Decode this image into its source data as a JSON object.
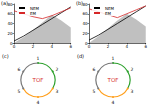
{
  "chart_data": [
    {
      "type": "line",
      "title": "(a)",
      "legend": "upper left",
      "grid": false,
      "x": [
        0,
        1,
        2,
        3,
        4,
        5,
        6
      ],
      "xlim": [
        0,
        6
      ],
      "xticks": [
        0,
        2,
        4,
        6
      ],
      "ylim": [
        0,
        80
      ],
      "yticks": [
        0,
        20,
        40,
        60,
        80
      ],
      "series": [
        {
          "type": "area",
          "color": "#b0b0b0",
          "values": [
            0,
            12,
            26,
            42,
            58,
            46,
            32
          ]
        },
        {
          "name": "NEM",
          "color": "#000000",
          "values": [
            4,
            14,
            26,
            38,
            50,
            62,
            74
          ]
        },
        {
          "name": "EM",
          "color": "#d62728",
          "values": [
            66,
            60,
            54,
            50,
            56,
            64,
            72
          ]
        }
      ]
    },
    {
      "type": "line",
      "title": "(b)",
      "legend": "upper left",
      "grid": false,
      "x": [
        0,
        1,
        2,
        3,
        4,
        5,
        6
      ],
      "xlim": [
        0,
        6
      ],
      "xticks": [
        0,
        2,
        4,
        6
      ],
      "ylim": [
        0,
        80
      ],
      "yticks": [
        0,
        20,
        40,
        60,
        80
      ],
      "series": [
        {
          "type": "area",
          "color": "#b0b0b0",
          "values": [
            0,
            14,
            30,
            46,
            60,
            48,
            34
          ]
        },
        {
          "name": "NEM",
          "color": "#000000",
          "values": [
            6,
            16,
            28,
            40,
            52,
            64,
            76
          ]
        },
        {
          "name": "EM",
          "color": "#d62728",
          "values": [
            70,
            64,
            58,
            52,
            60,
            68,
            76
          ]
        }
      ]
    }
  ],
  "diagrams": [
    {
      "label": "(c)",
      "center": "TOF",
      "center_color": "#d62728",
      "nodes": [
        {
          "label": "1",
          "color": "#2ca02c"
        },
        {
          "label": "2",
          "color": "#2ca02c"
        },
        {
          "label": "3",
          "color": "#ff9f1c"
        },
        {
          "label": "4",
          "color": "#ff9f1c"
        },
        {
          "label": "5",
          "color": "#777777"
        },
        {
          "label": "6",
          "color": "#777777"
        }
      ]
    },
    {
      "label": "(d)",
      "center": "TOF",
      "center_color": "#d62728",
      "nodes": [
        {
          "label": "1",
          "color": "#2ca02c"
        },
        {
          "label": "2",
          "color": "#2ca02c"
        },
        {
          "label": "3",
          "color": "#ff9f1c"
        },
        {
          "label": "4",
          "color": "#ff9f1c"
        },
        {
          "label": "5",
          "color": "#777777"
        },
        {
          "label": "6",
          "color": "#777777"
        }
      ]
    }
  ]
}
